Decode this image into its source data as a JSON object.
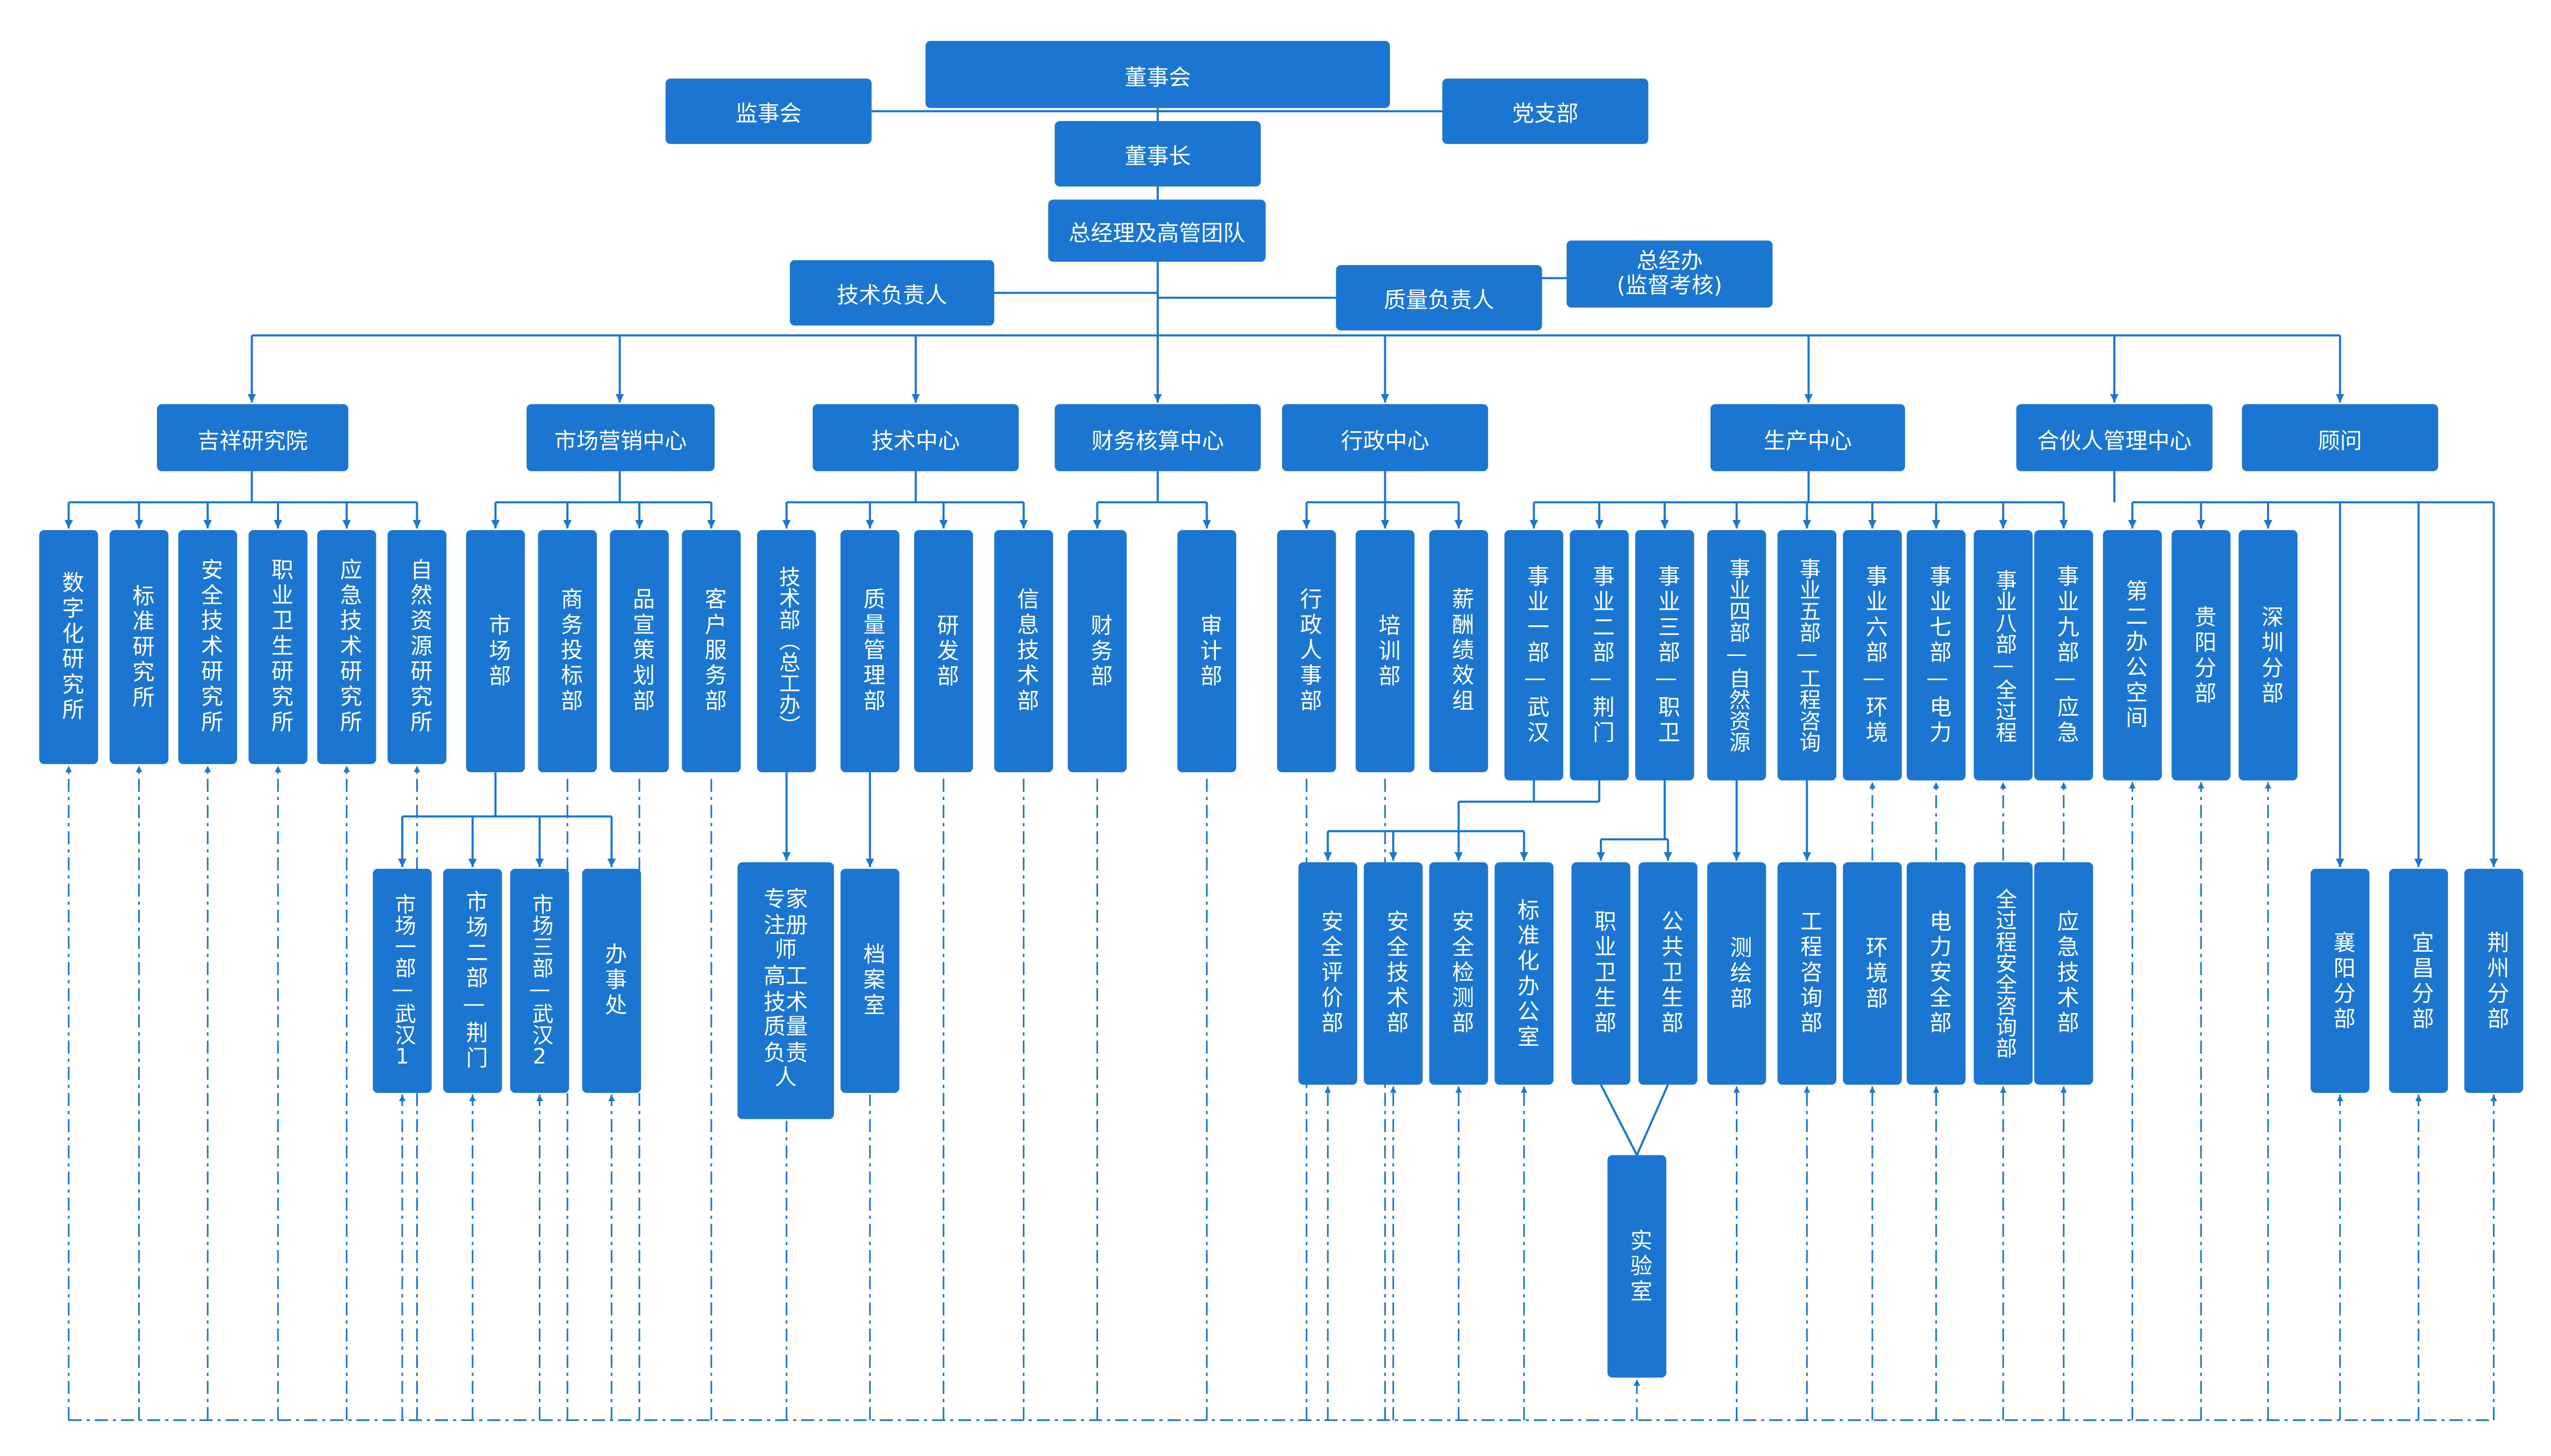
{
  "colors": {
    "box": "#1b76d1",
    "line": "#1b76d1",
    "text": "#ffffff"
  },
  "nodes": {
    "dongshihui": "董事会",
    "jianshihui": "监事会",
    "dangzhibu": "党支部",
    "dongshizhang": "董事长",
    "zongjingli": "总经理及高管团队",
    "jishufuzeren": "技术负责人",
    "zhiliangfuzeren": "质量负责人",
    "zongjingban": "总经办\n(监督考核)",
    "jixiang": "吉祥研究院",
    "shichangyingxiao": "市场营销中心",
    "jishuzhongxin": "技术中心",
    "caiwu": "财务核算中心",
    "xingzheng": "行政中心",
    "shengchan": "生产中心",
    "hehuoren": "合伙人管理中心",
    "guwen": "顾问",
    "shuzihua": "数字化研究所",
    "biaozhun": "标准研究所",
    "anquanjishu_yjs": "安全技术研究所",
    "zhiyeweisheng_yjs": "职业卫生研究所",
    "yingjijishu_yjs": "应急技术研究所",
    "ziranziyuan_yjs": "自然资源研究所",
    "shichangbu": "市场部",
    "shangwu": "商务投标部",
    "pinxuan": "品宣策划部",
    "kehu": "客户服务部",
    "jishubu": "技术部（总工办）",
    "zhiliangguanli": "质量管理部",
    "yanfa": "研发部",
    "xinxi": "信息技术部",
    "caiwubu": "财务部",
    "shenji": "审计部",
    "xingzhengrenshi": "行政人事部",
    "peixun": "培训部",
    "xinchou": "薪酬绩效组",
    "sy1": "事业一部—武汉",
    "sy2": "事业二部—荆门",
    "sy3": "事业三部—职卫",
    "sy4": "事业四部—自然资源",
    "sy5": "事业五部—工程咨询",
    "sy6": "事业六部—环境",
    "sy7": "事业七部—电力",
    "sy8": "事业八部—全过程",
    "sy9": "事业九部—应急",
    "di2ban": "第二办公空间",
    "guiyang": "贵阳分部",
    "shenzhen": "深圳分部",
    "xiangyang": "襄阳分部",
    "yichang": "宜昌分部",
    "jingzhou": "荆州分部",
    "sc1": "市场一部—武汉1",
    "sc2": "市场二部—荆门",
    "sc3": "市场三部—武汉2",
    "banshichu": "办事处",
    "zhuanjia": "专家注册师\n高工技术质量负责人",
    "dangan": "档案室",
    "anquanpingjia": "安全评价部",
    "anquanjishu": "安全技术部",
    "anquanjiance": "安全检测部",
    "biaozhunhua": "标准化办公室",
    "zhiyeweisheng": "职业卫生部",
    "gonggongweisheng": "公共卫生部",
    "cehui": "测绘部",
    "gongchengzixun": "工程咨询部",
    "huanjing": "环境部",
    "dianli": "电力安全部",
    "quanguocheng": "全过程安全咨询部",
    "yingjijishu": "应急技术部",
    "shiyanshi": "实验室"
  }
}
